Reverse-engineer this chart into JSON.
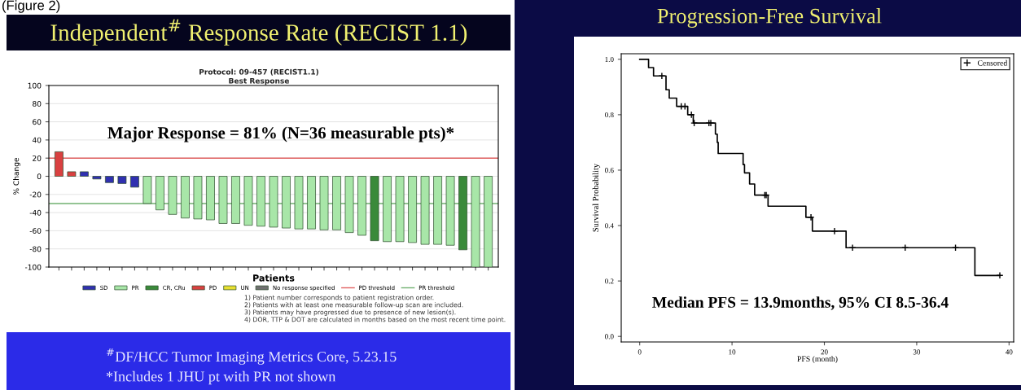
{
  "chart_data": [
    {
      "type": "bar",
      "title": "Independent$^{#}$ Response Rate (RECIST 1.1)",
      "subtitle": "Protocol: 09-457 (RECIST1.1)",
      "xlabel": "Patients",
      "ylabel": "% Change",
      "categories": [
        null,
        null,
        null,
        null,
        null,
        null,
        null,
        null,
        null,
        null,
        null,
        null,
        null,
        null,
        null,
        null,
        null,
        null,
        null,
        null,
        null,
        null,
        null,
        null,
        null,
        null,
        null,
        null,
        null,
        null,
        null,
        null,
        null,
        null,
        null
      ],
      "series": [
        {
          "name": "SD",
          "color": "#3030b0",
          "values": [
            null,
            null,
            5,
            -3,
            -7,
            -8,
            -12,
            null,
            null,
            null,
            null,
            null,
            null,
            null,
            null,
            null,
            null,
            null,
            null,
            null,
            null,
            null,
            null,
            null,
            null,
            null,
            null,
            null,
            null,
            null,
            null,
            null,
            null,
            null,
            null
          ]
        },
        {
          "name": "PR",
          "color": "#a8e6a8",
          "values": [
            null,
            null,
            null,
            null,
            null,
            null,
            null,
            -30,
            -37,
            -42,
            -46,
            -47,
            -48,
            -52,
            -52,
            -54,
            -55,
            -56,
            -57,
            -58,
            -58,
            -59,
            -59,
            -62,
            -65,
            null,
            -72,
            -72,
            -73,
            -75,
            -75,
            -76,
            null,
            -100,
            -100
          ]
        },
        {
          "name": "CR, CRu",
          "color": "#3a8a3a",
          "values": [
            null,
            null,
            null,
            null,
            null,
            null,
            null,
            null,
            null,
            null,
            null,
            null,
            null,
            null,
            null,
            null,
            null,
            null,
            null,
            null,
            null,
            null,
            null,
            null,
            null,
            -71,
            null,
            null,
            null,
            null,
            null,
            null,
            -81,
            null,
            null
          ]
        },
        {
          "name": "PD",
          "color": "#d94040",
          "values": [
            27,
            5,
            null,
            null,
            null,
            null,
            null,
            null,
            null,
            null,
            null,
            null,
            null,
            null,
            null,
            null,
            null,
            null,
            null,
            null,
            null,
            null,
            null,
            null,
            null,
            null,
            null,
            null,
            null,
            null,
            null,
            null,
            null,
            null,
            null
          ]
        },
        {
          "name": "UN",
          "color": "#e8e030",
          "values": [
            null,
            null,
            null,
            null,
            null,
            null,
            null,
            null,
            null,
            null,
            null,
            null,
            null,
            null,
            null,
            null,
            null,
            null,
            null,
            null,
            null,
            null,
            null,
            null,
            null,
            null,
            null,
            null,
            null,
            null,
            null,
            null,
            null,
            null,
            null
          ]
        },
        {
          "name": "No response specified",
          "color": "#707070",
          "values": [
            null,
            null,
            null,
            null,
            null,
            null,
            null,
            null,
            null,
            null,
            null,
            null,
            null,
            null,
            null,
            null,
            null,
            null,
            null,
            null,
            null,
            null,
            null,
            null,
            null,
            null,
            null,
            null,
            null,
            null,
            null,
            null,
            null,
            null,
            null
          ]
        }
      ],
      "ref_lines": [
        {
          "axis": "y",
          "value": 20,
          "label": "PD threshold",
          "color": "#e06060"
        },
        {
          "axis": "y",
          "value": -30,
          "label": "PR threshold",
          "color": "#70b070"
        }
      ],
      "ylim": [
        -100,
        100
      ],
      "yticks": [
        -100,
        -80,
        -60,
        -40,
        -20,
        0,
        20,
        40,
        60,
        80,
        100
      ],
      "grid": "y",
      "legend": "bottom",
      "annotations": [
        "Best Response",
        "Major Response = 81% (N=36 measurable pts)*",
        "1) Patient number corresponds to patient registration order.",
        "2) Patients with at least one measurable follow-up scan are included.",
        "3) Patients may have progressed due to presence of new lesion(s).",
        "4) DOR, TTP & DOT are calculated in months based on the most recent time point.",
        "$^{#}$DF/HCC Tumor Imaging Metrics Core, 5.23.15",
        "*Includes 1 JHU pt with PR not shown",
        "(Figure 2)"
      ]
    },
    {
      "type": "step",
      "title": "Progression-Free Survival",
      "xlabel": "PFS (month)",
      "ylabel": "Survival Probability",
      "series": [
        {
          "color": "#000000",
          "x": [
            0,
            0.96,
            1.5,
            2.85,
            3.2,
            4.0,
            5.2,
            5.8,
            8.2,
            8.4,
            8.5,
            11.2,
            11.35,
            11.9,
            12.45,
            13.9,
            18.0,
            18.7,
            22.35,
            36.3,
            39.0
          ],
          "values": [
            1.0,
            0.97,
            0.94,
            0.89,
            0.86,
            0.83,
            0.8,
            0.77,
            0.73,
            0.7,
            0.66,
            0.62,
            0.59,
            0.55,
            0.51,
            0.47,
            0.43,
            0.38,
            0.32,
            0.22,
            0.22
          ]
        },
        {
          "name": "Censored",
          "type": "scatter",
          "marker": "cross",
          "color": "#000000",
          "x": [
            2.4,
            4.5,
            4.9,
            5.6,
            5.9,
            7.5,
            7.7,
            13.55,
            13.7,
            18.55,
            21.1,
            23.05,
            28.75,
            34.2,
            39.0
          ],
          "values": [
            0.94,
            0.83,
            0.83,
            0.8,
            0.77,
            0.77,
            0.77,
            0.51,
            0.51,
            0.43,
            0.38,
            0.32,
            0.32,
            0.32,
            0.22
          ]
        }
      ],
      "xlim": [
        -2,
        40.5
      ],
      "xticks": [
        0,
        10,
        20,
        30,
        40
      ],
      "ylim": [
        -0.02,
        1.02
      ],
      "yticks": [
        {
          "value": 0,
          "label": "0.0"
        },
        0.2,
        0.4,
        0.6,
        0.8,
        {
          "value": 1,
          "label": "1.0"
        }
      ],
      "legend": "top right",
      "grid": false,
      "annotations": [
        "Median PFS = 13.9months, 95% CI 8.5-36.4"
      ]
    }
  ]
}
